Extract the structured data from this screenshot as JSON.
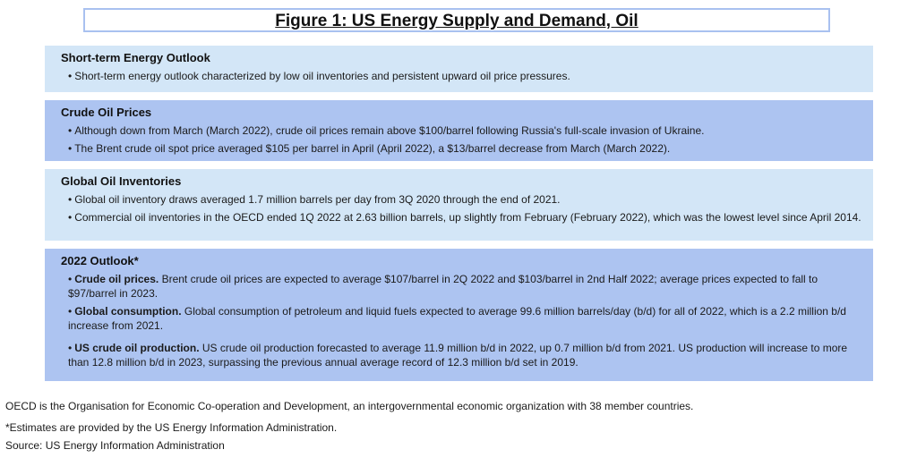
{
  "title": "Figure 1: US Energy Supply and Demand, Oil",
  "sections": [
    {
      "heading": "Short-term Energy Outlook",
      "bullets": [
        "Short-term energy outlook characterized by low oil inventories and persistent upward oil price pressures."
      ]
    },
    {
      "heading": "Crude Oil Prices",
      "bullets": [
        "Although down from March (March 2022), crude oil prices remain above $100/barrel following Russia's full-scale invasion of Ukraine.",
        "The Brent crude oil spot price averaged $105 per barrel in April (April 2022), a $13/barrel decrease from March (March 2022)."
      ]
    },
    {
      "heading": "Global Oil Inventories",
      "bullets": [
        "Global oil inventory draws averaged 1.7 million barrels per day from 3Q 2020 through the end of 2021.",
        "Commercial oil inventories in the OECD ended 1Q 2022 at 2.63 billion barrels, up slightly from February (February 2022), which was the lowest level since April 2014."
      ]
    },
    {
      "heading": "2022 Outlook*",
      "bullets": [
        {
          "label": "Crude oil prices.",
          "text": "Brent crude oil prices are expected to average $107/barrel in 2Q 2022 and $103/barrel in 2nd Half 2022; average prices expected to fall to $97/barrel in 2023."
        },
        {
          "label": "Global consumption.",
          "text": "Global consumption of petroleum and liquid fuels expected to average 99.6 million barrels/day (b/d) for all of 2022, which is a 2.2 million b/d increase from 2021."
        },
        {
          "label": "US crude oil production.",
          "text": "US crude oil production forecasted to average 11.9 million b/d in 2022, up 0.7 million b/d from 2021. US production will increase to more than 12.8 million b/d in 2023, surpassing the previous annual average record of 12.3 million b/d set in 2019."
        }
      ]
    }
  ],
  "footnotes": {
    "oecd": "OECD is the Organisation for Economic Co-operation and Development, an intergovernmental economic organization with 38 member countries.",
    "estimates": "*Estimates are provided by the US Energy Information Administration.",
    "source": "Source: US Energy Information Administration"
  },
  "colors": {
    "light_panel": "#d3e6f7",
    "dark_panel": "#adc4f1",
    "title_border": "#a9c1f0"
  }
}
